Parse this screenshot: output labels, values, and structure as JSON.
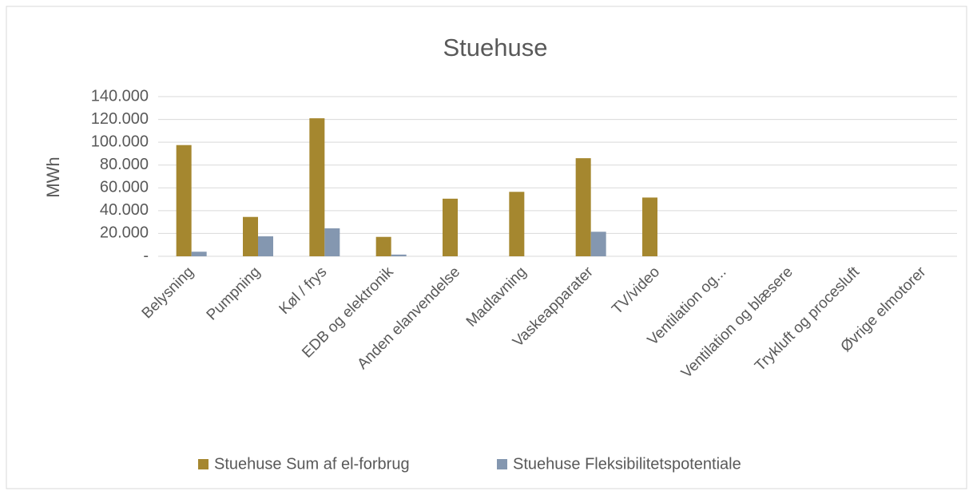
{
  "chart_data": {
    "type": "bar",
    "title": "Stuehuse",
    "y_label": "MWh",
    "categories": [
      "Belysning",
      "Pumpning",
      "Køl / frys",
      "EDB og elektronik",
      "Anden elanvendelse",
      "Madlavning",
      "Vaskeapparater",
      "TV/video",
      "Ventilation og...",
      "Ventilation og blæsere",
      "Trykluft og procesluft",
      "Øvrige elmotorer"
    ],
    "series": [
      {
        "name": "Stuehuse Sum af el-forbrug",
        "color": "#a5872f",
        "values": [
          97500,
          34500,
          121000,
          17000,
          50500,
          56500,
          86000,
          51500,
          0,
          0,
          0,
          0
        ]
      },
      {
        "name": "Stuehuse Fleksibilitetspotentiale",
        "color": "#8497b0",
        "values": [
          4000,
          17500,
          24500,
          1500,
          0,
          0,
          21500,
          0,
          0,
          0,
          0,
          0
        ]
      }
    ],
    "ylim": [
      0,
      140000
    ],
    "yticks": [
      {
        "value": 0,
        "label": "-"
      },
      {
        "value": 20000,
        "label": "20.000"
      },
      {
        "value": 40000,
        "label": "40.000"
      },
      {
        "value": 60000,
        "label": "60.000"
      },
      {
        "value": 80000,
        "label": "80.000"
      },
      {
        "value": 100000,
        "label": "100.000"
      },
      {
        "value": 120000,
        "label": "120.000"
      },
      {
        "value": 140000,
        "label": "140.000"
      }
    ],
    "grid": true,
    "legend": "bottom"
  }
}
